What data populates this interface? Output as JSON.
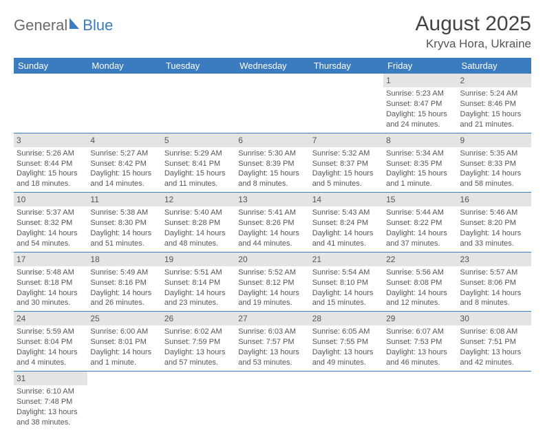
{
  "logo": {
    "text1": "General",
    "text2": "Blue"
  },
  "title": "August 2025",
  "location": "Kryva Hora, Ukraine",
  "colors": {
    "header_bg": "#3b7bbf",
    "header_fg": "#ffffff",
    "daynum_bg": "#e4e4e4",
    "row_border": "#3b7bbf",
    "text": "#555555"
  },
  "weekdays": [
    "Sunday",
    "Monday",
    "Tuesday",
    "Wednesday",
    "Thursday",
    "Friday",
    "Saturday"
  ],
  "weeks": [
    [
      null,
      null,
      null,
      null,
      null,
      {
        "n": "1",
        "sunrise": "Sunrise: 5:23 AM",
        "sunset": "Sunset: 8:47 PM",
        "daylight": "Daylight: 15 hours and 24 minutes."
      },
      {
        "n": "2",
        "sunrise": "Sunrise: 5:24 AM",
        "sunset": "Sunset: 8:46 PM",
        "daylight": "Daylight: 15 hours and 21 minutes."
      }
    ],
    [
      {
        "n": "3",
        "sunrise": "Sunrise: 5:26 AM",
        "sunset": "Sunset: 8:44 PM",
        "daylight": "Daylight: 15 hours and 18 minutes."
      },
      {
        "n": "4",
        "sunrise": "Sunrise: 5:27 AM",
        "sunset": "Sunset: 8:42 PM",
        "daylight": "Daylight: 15 hours and 14 minutes."
      },
      {
        "n": "5",
        "sunrise": "Sunrise: 5:29 AM",
        "sunset": "Sunset: 8:41 PM",
        "daylight": "Daylight: 15 hours and 11 minutes."
      },
      {
        "n": "6",
        "sunrise": "Sunrise: 5:30 AM",
        "sunset": "Sunset: 8:39 PM",
        "daylight": "Daylight: 15 hours and 8 minutes."
      },
      {
        "n": "7",
        "sunrise": "Sunrise: 5:32 AM",
        "sunset": "Sunset: 8:37 PM",
        "daylight": "Daylight: 15 hours and 5 minutes."
      },
      {
        "n": "8",
        "sunrise": "Sunrise: 5:34 AM",
        "sunset": "Sunset: 8:35 PM",
        "daylight": "Daylight: 15 hours and 1 minute."
      },
      {
        "n": "9",
        "sunrise": "Sunrise: 5:35 AM",
        "sunset": "Sunset: 8:33 PM",
        "daylight": "Daylight: 14 hours and 58 minutes."
      }
    ],
    [
      {
        "n": "10",
        "sunrise": "Sunrise: 5:37 AM",
        "sunset": "Sunset: 8:32 PM",
        "daylight": "Daylight: 14 hours and 54 minutes."
      },
      {
        "n": "11",
        "sunrise": "Sunrise: 5:38 AM",
        "sunset": "Sunset: 8:30 PM",
        "daylight": "Daylight: 14 hours and 51 minutes."
      },
      {
        "n": "12",
        "sunrise": "Sunrise: 5:40 AM",
        "sunset": "Sunset: 8:28 PM",
        "daylight": "Daylight: 14 hours and 48 minutes."
      },
      {
        "n": "13",
        "sunrise": "Sunrise: 5:41 AM",
        "sunset": "Sunset: 8:26 PM",
        "daylight": "Daylight: 14 hours and 44 minutes."
      },
      {
        "n": "14",
        "sunrise": "Sunrise: 5:43 AM",
        "sunset": "Sunset: 8:24 PM",
        "daylight": "Daylight: 14 hours and 41 minutes."
      },
      {
        "n": "15",
        "sunrise": "Sunrise: 5:44 AM",
        "sunset": "Sunset: 8:22 PM",
        "daylight": "Daylight: 14 hours and 37 minutes."
      },
      {
        "n": "16",
        "sunrise": "Sunrise: 5:46 AM",
        "sunset": "Sunset: 8:20 PM",
        "daylight": "Daylight: 14 hours and 33 minutes."
      }
    ],
    [
      {
        "n": "17",
        "sunrise": "Sunrise: 5:48 AM",
        "sunset": "Sunset: 8:18 PM",
        "daylight": "Daylight: 14 hours and 30 minutes."
      },
      {
        "n": "18",
        "sunrise": "Sunrise: 5:49 AM",
        "sunset": "Sunset: 8:16 PM",
        "daylight": "Daylight: 14 hours and 26 minutes."
      },
      {
        "n": "19",
        "sunrise": "Sunrise: 5:51 AM",
        "sunset": "Sunset: 8:14 PM",
        "daylight": "Daylight: 14 hours and 23 minutes."
      },
      {
        "n": "20",
        "sunrise": "Sunrise: 5:52 AM",
        "sunset": "Sunset: 8:12 PM",
        "daylight": "Daylight: 14 hours and 19 minutes."
      },
      {
        "n": "21",
        "sunrise": "Sunrise: 5:54 AM",
        "sunset": "Sunset: 8:10 PM",
        "daylight": "Daylight: 14 hours and 15 minutes."
      },
      {
        "n": "22",
        "sunrise": "Sunrise: 5:56 AM",
        "sunset": "Sunset: 8:08 PM",
        "daylight": "Daylight: 14 hours and 12 minutes."
      },
      {
        "n": "23",
        "sunrise": "Sunrise: 5:57 AM",
        "sunset": "Sunset: 8:06 PM",
        "daylight": "Daylight: 14 hours and 8 minutes."
      }
    ],
    [
      {
        "n": "24",
        "sunrise": "Sunrise: 5:59 AM",
        "sunset": "Sunset: 8:04 PM",
        "daylight": "Daylight: 14 hours and 4 minutes."
      },
      {
        "n": "25",
        "sunrise": "Sunrise: 6:00 AM",
        "sunset": "Sunset: 8:01 PM",
        "daylight": "Daylight: 14 hours and 1 minute."
      },
      {
        "n": "26",
        "sunrise": "Sunrise: 6:02 AM",
        "sunset": "Sunset: 7:59 PM",
        "daylight": "Daylight: 13 hours and 57 minutes."
      },
      {
        "n": "27",
        "sunrise": "Sunrise: 6:03 AM",
        "sunset": "Sunset: 7:57 PM",
        "daylight": "Daylight: 13 hours and 53 minutes."
      },
      {
        "n": "28",
        "sunrise": "Sunrise: 6:05 AM",
        "sunset": "Sunset: 7:55 PM",
        "daylight": "Daylight: 13 hours and 49 minutes."
      },
      {
        "n": "29",
        "sunrise": "Sunrise: 6:07 AM",
        "sunset": "Sunset: 7:53 PM",
        "daylight": "Daylight: 13 hours and 46 minutes."
      },
      {
        "n": "30",
        "sunrise": "Sunrise: 6:08 AM",
        "sunset": "Sunset: 7:51 PM",
        "daylight": "Daylight: 13 hours and 42 minutes."
      }
    ],
    [
      {
        "n": "31",
        "sunrise": "Sunrise: 6:10 AM",
        "sunset": "Sunset: 7:48 PM",
        "daylight": "Daylight: 13 hours and 38 minutes."
      },
      null,
      null,
      null,
      null,
      null,
      null
    ]
  ]
}
